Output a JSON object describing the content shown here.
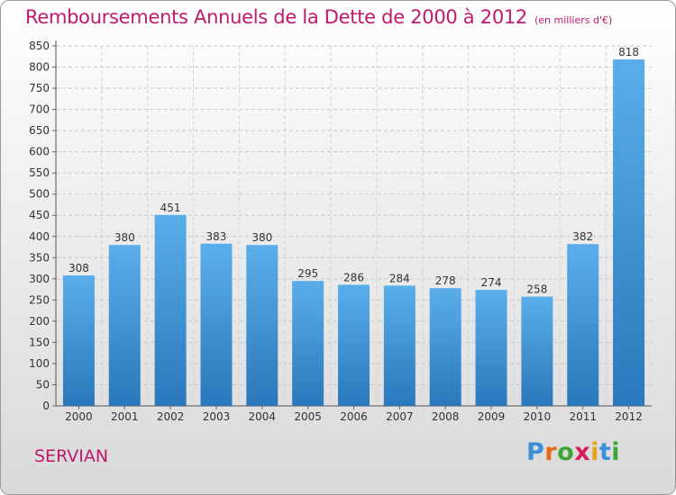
{
  "title": "Remboursements Annuels de la Dette de 2000 à 2012",
  "subtitle": "(en milliers d'€)",
  "place": "SERVIAN",
  "logo": {
    "letters": [
      "P",
      "r",
      "o",
      "x",
      "i",
      "t",
      "i"
    ],
    "colors": [
      "#3a8fd8",
      "#e56a1c",
      "#3fa535",
      "#d41f5a",
      "#e8a11a",
      "#3a8fd8",
      "#3fa535"
    ]
  },
  "colors": {
    "bar_top": "#5aaeea",
    "bar_bottom": "#2a78bb",
    "accent": "#c0196d"
  },
  "chart_data": {
    "type": "bar",
    "categories": [
      "2000",
      "2001",
      "2002",
      "2003",
      "2004",
      "2005",
      "2006",
      "2007",
      "2008",
      "2009",
      "2010",
      "2011",
      "2012"
    ],
    "values": [
      308,
      380,
      451,
      383,
      380,
      295,
      286,
      284,
      278,
      274,
      258,
      382,
      818
    ],
    "title": "Remboursements Annuels de la Dette de 2000 à 2012",
    "subtitle": "(en milliers d'€)",
    "ylim": [
      0,
      850
    ],
    "yticks": [
      0,
      50,
      100,
      150,
      200,
      250,
      300,
      350,
      400,
      450,
      500,
      550,
      600,
      650,
      700,
      750,
      800,
      850
    ],
    "grid": true,
    "data_labels": true
  }
}
